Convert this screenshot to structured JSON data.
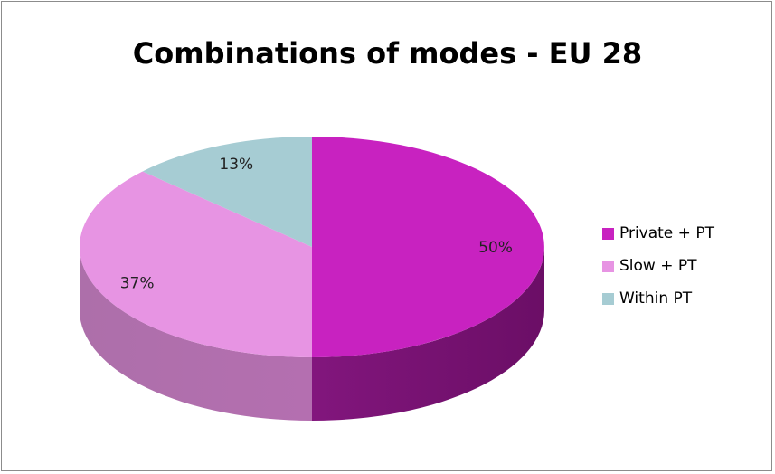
{
  "chart_data": {
    "type": "pie",
    "title": "Combinations of modes - EU 28",
    "categories": [
      "Private + PT",
      "Slow + PT",
      "Within PT"
    ],
    "values": [
      50,
      37,
      13
    ],
    "labels": [
      "50%",
      "37%",
      "13%"
    ],
    "colors": [
      "#c822c0",
      "#e794e3",
      "#a6ccd3"
    ],
    "side_colors": [
      "#6b0e66",
      "#b46fb0",
      "#7fa2a8"
    ],
    "style": "3d",
    "legend_position": "right"
  }
}
